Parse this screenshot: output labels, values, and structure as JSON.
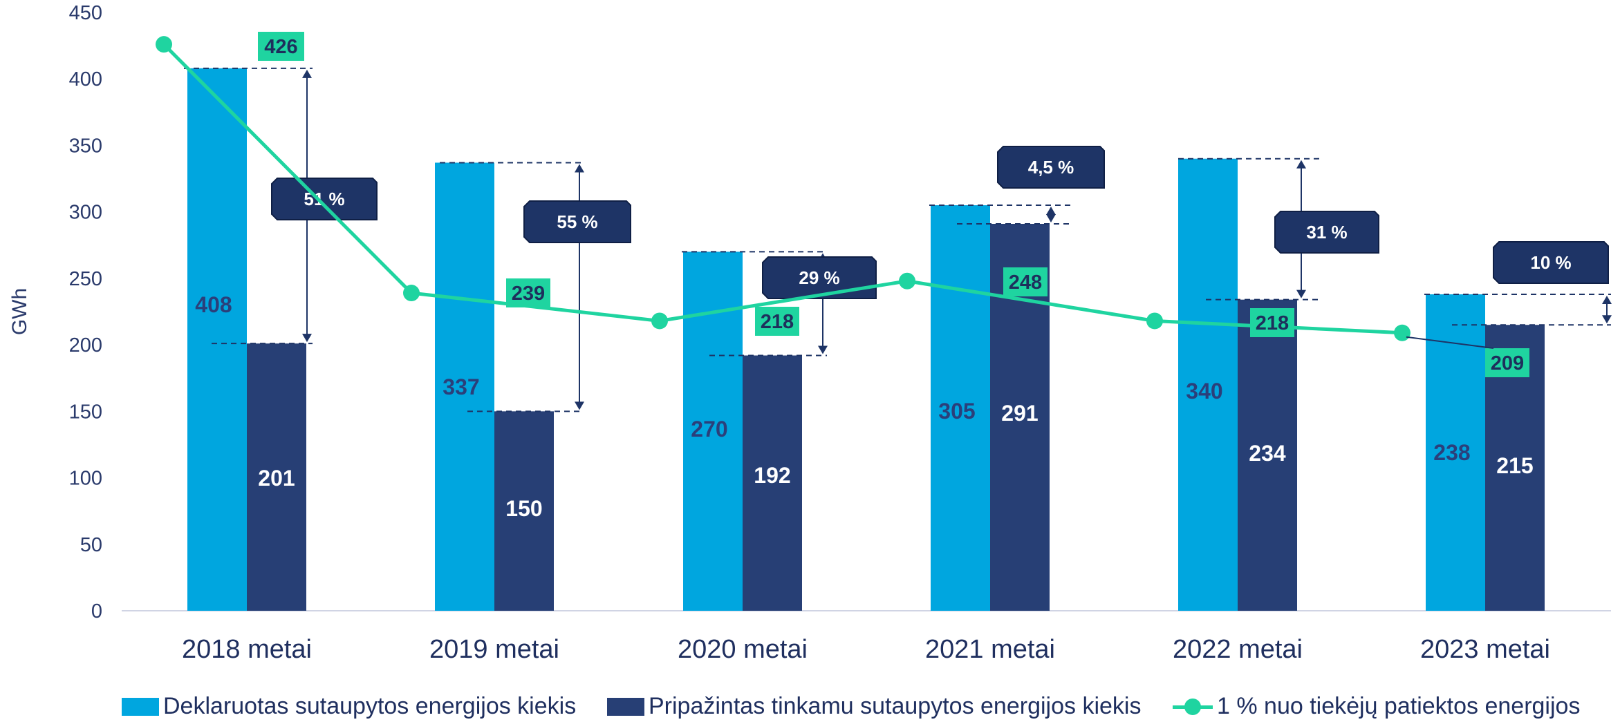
{
  "chart_data": {
    "type": "bar",
    "ylabel": "GWh",
    "xlabel": "",
    "ylim": [
      0,
      450
    ],
    "yticks": [
      0,
      50,
      100,
      150,
      200,
      250,
      300,
      350,
      400,
      450
    ],
    "categories": [
      "2018 metai",
      "2019 metai",
      "2020 metai",
      "2021 metai",
      "2022 metai",
      "2023 metai"
    ],
    "series": [
      {
        "name": "Deklaruotas sutaupytos energijos kiekis",
        "type": "bar",
        "color": "#00a6df",
        "values": [
          408,
          337,
          270,
          305,
          340,
          238
        ]
      },
      {
        "name": "Pripažintas tinkamu sutaupytos energijos kiekis",
        "type": "bar",
        "color": "#273f75",
        "values": [
          201,
          150,
          192,
          291,
          234,
          215
        ]
      },
      {
        "name": "1 % nuo tiekėjų patiektos energijos",
        "type": "line",
        "color": "#1fd4a0",
        "values": [
          426,
          239,
          218,
          248,
          218,
          209
        ]
      }
    ],
    "difference_labels": [
      "51 %",
      "55 %",
      "29 %",
      "4,5 %",
      "31 %",
      "10 %"
    ],
    "legend_position": "bottom",
    "grid": false
  }
}
